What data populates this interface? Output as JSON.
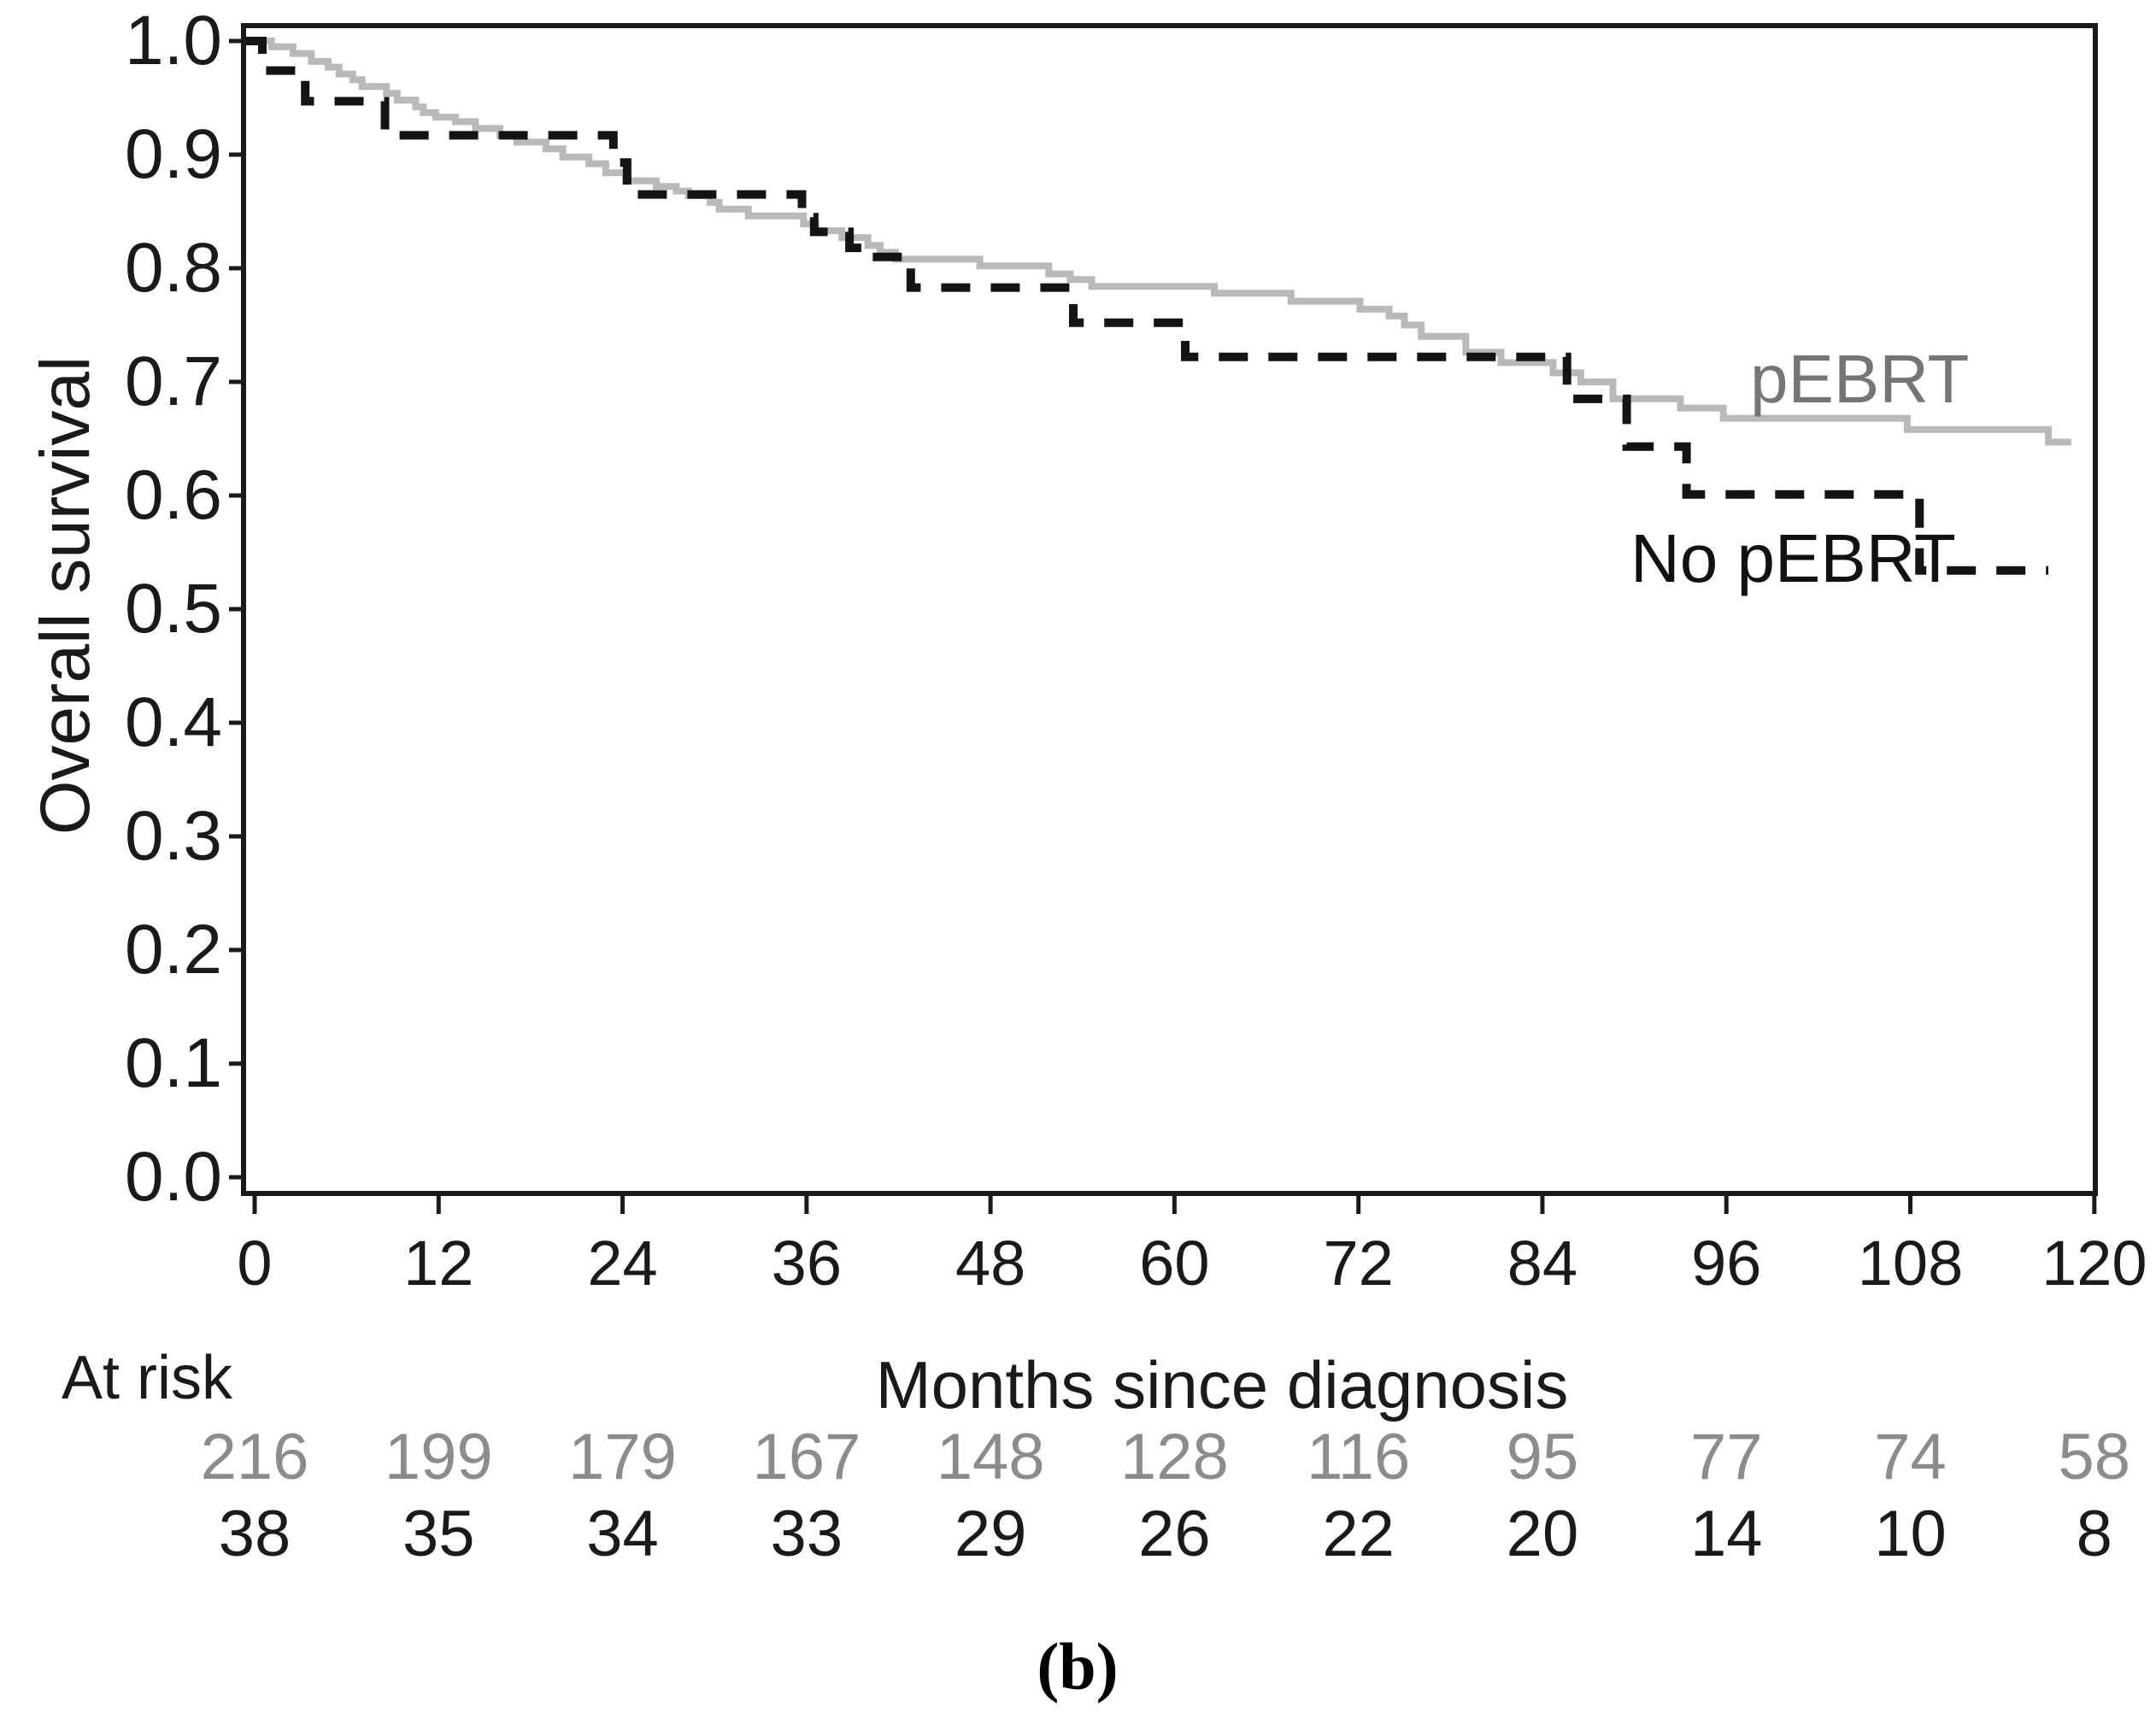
{
  "chart_data": {
    "type": "line",
    "subtype": "kaplan-meier-step",
    "title": "",
    "xlabel": "Months since diagnosis",
    "ylabel": "Overall survival",
    "caption": "(b)",
    "xlim": [
      0,
      120
    ],
    "ylim": [
      0.0,
      1.0
    ],
    "x_ticks": [
      0,
      12,
      24,
      36,
      48,
      60,
      72,
      84,
      96,
      108,
      120
    ],
    "y_ticks": [
      "1.0",
      "0.9",
      "0.8",
      "0.7",
      "0.6",
      "0.5",
      "0.4",
      "0.3",
      "0.2",
      "0.1",
      "0.0"
    ],
    "grid": false,
    "legend_position": "on-curve-annotations",
    "axis_color": "#1a1a1a",
    "series": [
      {
        "name": "pEBRT",
        "line_style": "solid",
        "line_color": "#b9b9b9",
        "label_color": "#757575",
        "end_month": 118.5,
        "steps": [
          [
            0,
            1.0
          ],
          [
            1.1,
            0.995
          ],
          [
            2.5,
            0.989
          ],
          [
            3.7,
            0.982
          ],
          [
            4.8,
            0.977
          ],
          [
            5.5,
            0.971
          ],
          [
            6.4,
            0.966
          ],
          [
            7.0,
            0.96
          ],
          [
            8.6,
            0.954
          ],
          [
            9.3,
            0.948
          ],
          [
            10.5,
            0.942
          ],
          [
            11.0,
            0.937
          ],
          [
            11.8,
            0.933
          ],
          [
            13.1,
            0.929
          ],
          [
            14.4,
            0.923
          ],
          [
            16.0,
            0.917
          ],
          [
            17.1,
            0.911
          ],
          [
            19.0,
            0.905
          ],
          [
            20.1,
            0.898
          ],
          [
            21.8,
            0.892
          ],
          [
            22.9,
            0.884
          ],
          [
            24.2,
            0.877
          ],
          [
            26.2,
            0.872
          ],
          [
            27.5,
            0.868
          ],
          [
            28.3,
            0.864
          ],
          [
            29.7,
            0.858
          ],
          [
            30.3,
            0.852
          ],
          [
            32.2,
            0.846
          ],
          [
            35.8,
            0.839
          ],
          [
            36.6,
            0.833
          ],
          [
            38.3,
            0.827
          ],
          [
            40.0,
            0.82
          ],
          [
            40.8,
            0.814
          ],
          [
            41.8,
            0.808
          ],
          [
            47.3,
            0.802
          ],
          [
            51.8,
            0.795
          ],
          [
            53.2,
            0.79
          ],
          [
            54.6,
            0.784
          ],
          [
            62.6,
            0.778
          ],
          [
            67.6,
            0.771
          ],
          [
            72.1,
            0.764
          ],
          [
            74.0,
            0.758
          ],
          [
            75.0,
            0.75
          ],
          [
            76.1,
            0.74
          ],
          [
            79.0,
            0.726
          ],
          [
            81.3,
            0.717
          ],
          [
            84.7,
            0.708
          ],
          [
            86.5,
            0.7
          ],
          [
            88.6,
            0.685
          ],
          [
            93.0,
            0.677
          ],
          [
            95.8,
            0.668
          ],
          [
            107.8,
            0.658
          ],
          [
            117.0,
            0.647
          ]
        ]
      },
      {
        "name": "No pEBRT",
        "line_style": "dashed",
        "line_color": "#141414",
        "label_color": "#111111",
        "end_month": 117.0,
        "steps": [
          [
            0,
            1.0
          ],
          [
            0.5,
            0.974
          ],
          [
            3.3,
            0.947
          ],
          [
            8.5,
            0.917
          ],
          [
            23.4,
            0.893
          ],
          [
            24.3,
            0.865
          ],
          [
            35.7,
            0.845
          ],
          [
            36.5,
            0.832
          ],
          [
            38.8,
            0.818
          ],
          [
            39.6,
            0.81
          ],
          [
            42.8,
            0.783
          ],
          [
            53.4,
            0.752
          ],
          [
            60.7,
            0.722
          ],
          [
            85.6,
            0.685
          ],
          [
            89.5,
            0.643
          ],
          [
            93.4,
            0.601
          ],
          [
            108.6,
            0.534
          ]
        ]
      }
    ],
    "at_risk": {
      "label": "At risk",
      "times": [
        0,
        12,
        24,
        36,
        48,
        60,
        72,
        84,
        96,
        108,
        120
      ],
      "rows": [
        {
          "name": "pEBRT",
          "color": "#8c8c8c",
          "values": [
            216,
            199,
            179,
            167,
            148,
            128,
            116,
            95,
            77,
            74,
            58
          ]
        },
        {
          "name": "No pEBRT",
          "color": "#1a1a1a",
          "values": [
            38,
            35,
            34,
            33,
            29,
            26,
            22,
            20,
            14,
            10,
            8
          ]
        }
      ]
    }
  }
}
